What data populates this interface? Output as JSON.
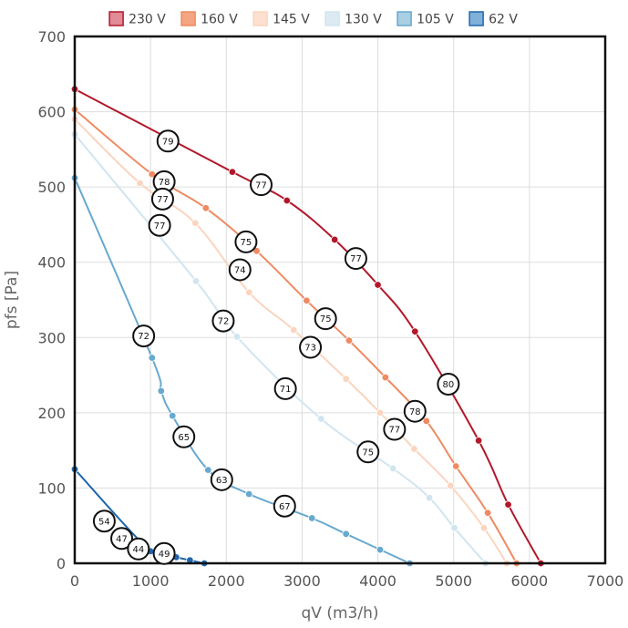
{
  "chart_data": {
    "type": "line",
    "xlabel": "qV (m3/h)",
    "ylabel": "pfs [Pa]",
    "xlim": [
      0,
      7000
    ],
    "ylim": [
      0,
      700
    ],
    "xticks": [
      0,
      1000,
      2000,
      3000,
      4000,
      5000,
      6000,
      7000
    ],
    "yticks": [
      0,
      100,
      200,
      300,
      400,
      500,
      600,
      700
    ],
    "grid": true,
    "legend": "top",
    "series": [
      {
        "name": "230 V",
        "color": "#b2182b",
        "fill": "#e08b96",
        "points": [
          [
            0,
            630
          ],
          [
            2080,
            520
          ],
          [
            2800,
            482
          ],
          [
            3430,
            430
          ],
          [
            4000,
            370
          ],
          [
            4490,
            308
          ],
          [
            5330,
            163
          ],
          [
            5720,
            78
          ],
          [
            6150,
            0
          ]
        ]
      },
      {
        "name": "160 V",
        "color": "#ef8a62",
        "fill": "#f4a582",
        "points": [
          [
            0,
            603
          ],
          [
            1020,
            517
          ],
          [
            1730,
            472
          ],
          [
            2400,
            415
          ],
          [
            3060,
            349
          ],
          [
            3620,
            296
          ],
          [
            4100,
            247
          ],
          [
            4640,
            189
          ],
          [
            5030,
            129
          ],
          [
            5450,
            67
          ],
          [
            5830,
            0
          ]
        ]
      },
      {
        "name": "145 V",
        "color": "#fbd5bf",
        "fill": "#fde0cf",
        "points": [
          [
            0,
            590
          ],
          [
            860,
            505
          ],
          [
            1590,
            452
          ],
          [
            2300,
            360
          ],
          [
            2890,
            310
          ],
          [
            3580,
            245
          ],
          [
            4030,
            200
          ],
          [
            4480,
            152
          ],
          [
            4960,
            103
          ],
          [
            5400,
            47
          ],
          [
            5700,
            0
          ]
        ]
      },
      {
        "name": "130 V",
        "color": "#d1e5f0",
        "fill": "#dcebf3",
        "points": [
          [
            0,
            570
          ],
          [
            1600,
            375
          ],
          [
            2140,
            301
          ],
          [
            3250,
            192
          ],
          [
            4200,
            126
          ],
          [
            4680,
            87
          ],
          [
            5010,
            47
          ],
          [
            5420,
            0
          ]
        ]
      },
      {
        "name": "105 V",
        "color": "#67a9cf",
        "fill": "#a9cfe3",
        "points": [
          [
            0,
            512
          ],
          [
            1020,
            273
          ],
          [
            1140,
            229
          ],
          [
            1290,
            196
          ],
          [
            1760,
            124
          ],
          [
            2300,
            92
          ],
          [
            3130,
            60
          ],
          [
            3580,
            39
          ],
          [
            4030,
            18
          ],
          [
            4420,
            0
          ]
        ]
      },
      {
        "name": "62 V",
        "color": "#2166ac",
        "fill": "#7fb1d9",
        "points": [
          [
            0,
            125
          ],
          [
            1000,
            16
          ],
          [
            1340,
            8
          ],
          [
            1520,
            4
          ],
          [
            1710,
            0
          ]
        ]
      }
    ],
    "annotations": [
      {
        "x": 1230,
        "y": 561,
        "text": "79"
      },
      {
        "x": 2460,
        "y": 503,
        "text": "77"
      },
      {
        "x": 3710,
        "y": 405,
        "text": "77"
      },
      {
        "x": 4930,
        "y": 238,
        "text": "80"
      },
      {
        "x": 1180,
        "y": 507,
        "text": "78"
      },
      {
        "x": 1160,
        "y": 484,
        "text": "77"
      },
      {
        "x": 2260,
        "y": 427,
        "text": "75"
      },
      {
        "x": 3310,
        "y": 325,
        "text": "75"
      },
      {
        "x": 4490,
        "y": 202,
        "text": "78"
      },
      {
        "x": 1120,
        "y": 449,
        "text": "77"
      },
      {
        "x": 2180,
        "y": 390,
        "text": "74"
      },
      {
        "x": 3110,
        "y": 287,
        "text": "73"
      },
      {
        "x": 4220,
        "y": 178,
        "text": "77"
      },
      {
        "x": 1960,
        "y": 322,
        "text": "72"
      },
      {
        "x": 2780,
        "y": 232,
        "text": "71"
      },
      {
        "x": 3870,
        "y": 148,
        "text": "75"
      },
      {
        "x": 910,
        "y": 302,
        "text": "72"
      },
      {
        "x": 1440,
        "y": 168,
        "text": "65"
      },
      {
        "x": 1940,
        "y": 111,
        "text": "63"
      },
      {
        "x": 2770,
        "y": 76,
        "text": "67"
      },
      {
        "x": 390,
        "y": 56,
        "text": "54"
      },
      {
        "x": 620,
        "y": 33,
        "text": "47"
      },
      {
        "x": 840,
        "y": 19,
        "text": "44"
      },
      {
        "x": 1180,
        "y": 13,
        "text": "49"
      }
    ]
  }
}
